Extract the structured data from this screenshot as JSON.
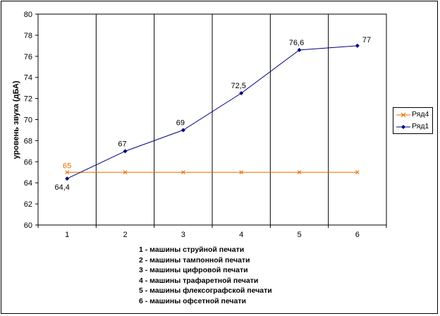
{
  "chart_data": {
    "type": "line",
    "title": "",
    "xlabel": "",
    "ylabel": "уровень звука (дБА)",
    "x": [
      1,
      2,
      3,
      4,
      5,
      6
    ],
    "x_ticks": [
      "1",
      "2",
      "3",
      "4",
      "5",
      "6"
    ],
    "ylim": [
      60,
      80
    ],
    "y_ticks": [
      "60",
      "62",
      "64",
      "66",
      "68",
      "70",
      "72",
      "74",
      "76",
      "78",
      "80"
    ],
    "grid": "vertical lines between categories",
    "legend_position": "right",
    "series": [
      {
        "name": "Ряд4",
        "color": "#E86B00",
        "marker": "x",
        "values": [
          65,
          65,
          65,
          65,
          65,
          65
        ],
        "data_labels": [
          "65",
          "",
          "",
          "",
          "",
          ""
        ]
      },
      {
        "name": "Ряд1",
        "color": "#000080",
        "marker": "diamond",
        "values": [
          64.4,
          67,
          69,
          72.5,
          76.6,
          77
        ],
        "data_labels": [
          "64,4",
          "67",
          "69",
          "72,5",
          "76,6",
          "77"
        ]
      }
    ],
    "notes": [
      "1 - машины струйной печати",
      "2 - машины тампонной печати",
      "3 - машины цифровой печати",
      "4 - машины трафаретной печати",
      "5 - машины флексографской печати",
      "6 - машины офсетной печати"
    ]
  }
}
